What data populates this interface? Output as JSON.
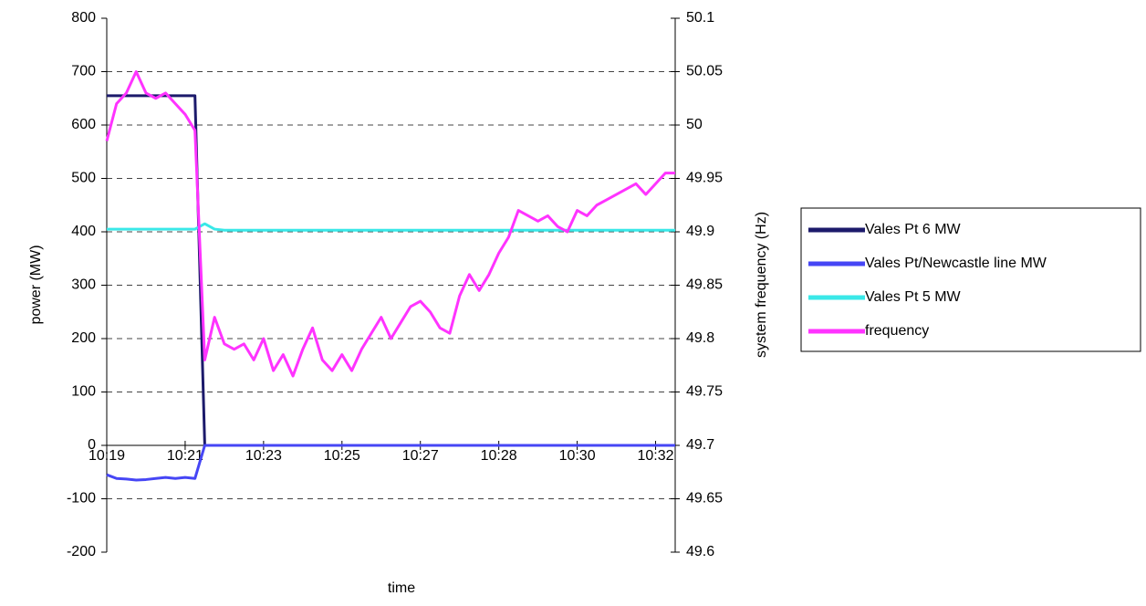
{
  "chart_data": {
    "type": "line",
    "xlabel": "time",
    "ylabel": "power (MW)",
    "y2label": "system frequency (Hz)",
    "categories": [
      "10:19",
      null,
      null,
      null,
      null,
      null,
      null,
      null,
      "10:21",
      null,
      null,
      null,
      null,
      null,
      null,
      null,
      "10:23",
      null,
      null,
      null,
      null,
      null,
      null,
      null,
      "10:25",
      null,
      null,
      null,
      null,
      null,
      null,
      null,
      "10:27",
      null,
      null,
      null,
      null,
      null,
      null,
      null,
      "10:28",
      null,
      null,
      null,
      null,
      null,
      null,
      null,
      "10:30",
      null,
      null,
      null,
      null,
      null,
      null,
      null,
      "10:32",
      null,
      null
    ],
    "ylim": [
      -200,
      800
    ],
    "yticks": [
      -200,
      -100,
      0,
      100,
      200,
      300,
      400,
      500,
      600,
      700,
      800
    ],
    "y2lim": [
      49.6,
      50.1
    ],
    "y2ticks": [
      49.6,
      49.65,
      49.7,
      49.75,
      49.8,
      49.85,
      49.9,
      49.95,
      50,
      50.05,
      50.1
    ],
    "grid": true,
    "legend": "right",
    "series": [
      {
        "name": "Vales Pt 6 MW",
        "color": "#1c1a6b",
        "values": [
          655,
          655,
          655,
          655,
          655,
          655,
          655,
          655,
          655,
          655,
          0,
          0,
          0,
          0,
          0,
          0,
          0,
          0,
          0,
          0,
          0,
          0,
          0,
          0,
          0,
          0,
          0,
          0,
          0,
          0,
          0,
          0,
          0,
          0,
          0,
          0,
          0,
          0,
          0,
          0,
          0,
          0,
          0,
          0,
          0,
          0,
          0,
          0,
          0,
          0,
          0,
          0,
          0,
          0,
          0,
          0,
          0,
          0,
          0
        ]
      },
      {
        "name": "Vales Pt/Newcastle line MW",
        "color": "#4646f5",
        "values": [
          -55,
          -62,
          -63,
          -65,
          -64,
          -62,
          -60,
          -62,
          -60,
          -62,
          0,
          0,
          0,
          0,
          0,
          0,
          0,
          0,
          0,
          0,
          0,
          0,
          0,
          0,
          0,
          0,
          0,
          0,
          0,
          0,
          0,
          0,
          0,
          0,
          0,
          0,
          0,
          0,
          0,
          0,
          0,
          0,
          0,
          0,
          0,
          0,
          0,
          0,
          0,
          0,
          0,
          0,
          0,
          0,
          0,
          0,
          0,
          0,
          0
        ]
      },
      {
        "name": "Vales Pt 5 MW",
        "color": "#3ae8e8",
        "values": [
          405,
          405,
          405,
          405,
          405,
          405,
          405,
          405,
          405,
          405,
          415,
          405,
          403,
          403,
          403,
          403,
          403,
          403,
          403,
          403,
          403,
          403,
          403,
          403,
          403,
          403,
          403,
          403,
          403,
          403,
          403,
          403,
          403,
          403,
          403,
          403,
          403,
          403,
          403,
          403,
          403,
          403,
          403,
          403,
          403,
          403,
          403,
          403,
          403,
          403,
          403,
          403,
          403,
          403,
          403,
          403,
          403,
          403,
          403
        ]
      },
      {
        "name": "frequency",
        "color": "#ff33ff",
        "axis": "y2",
        "values": [
          49.985,
          50.02,
          50.03,
          50.05,
          50.03,
          50.025,
          50.03,
          50.02,
          50.01,
          49.995,
          49.78,
          49.82,
          49.795,
          49.79,
          49.795,
          49.78,
          49.8,
          49.77,
          49.785,
          49.765,
          49.79,
          49.81,
          49.78,
          49.77,
          49.785,
          49.77,
          49.79,
          49.805,
          49.82,
          49.8,
          49.815,
          49.83,
          49.835,
          49.825,
          49.81,
          49.805,
          49.84,
          49.86,
          49.845,
          49.86,
          49.88,
          49.895,
          49.92,
          49.915,
          49.91,
          49.915,
          49.905,
          49.9,
          49.92,
          49.915,
          49.925,
          49.93,
          49.935,
          49.94,
          49.945,
          49.935,
          49.945,
          49.955,
          49.955
        ]
      }
    ]
  }
}
